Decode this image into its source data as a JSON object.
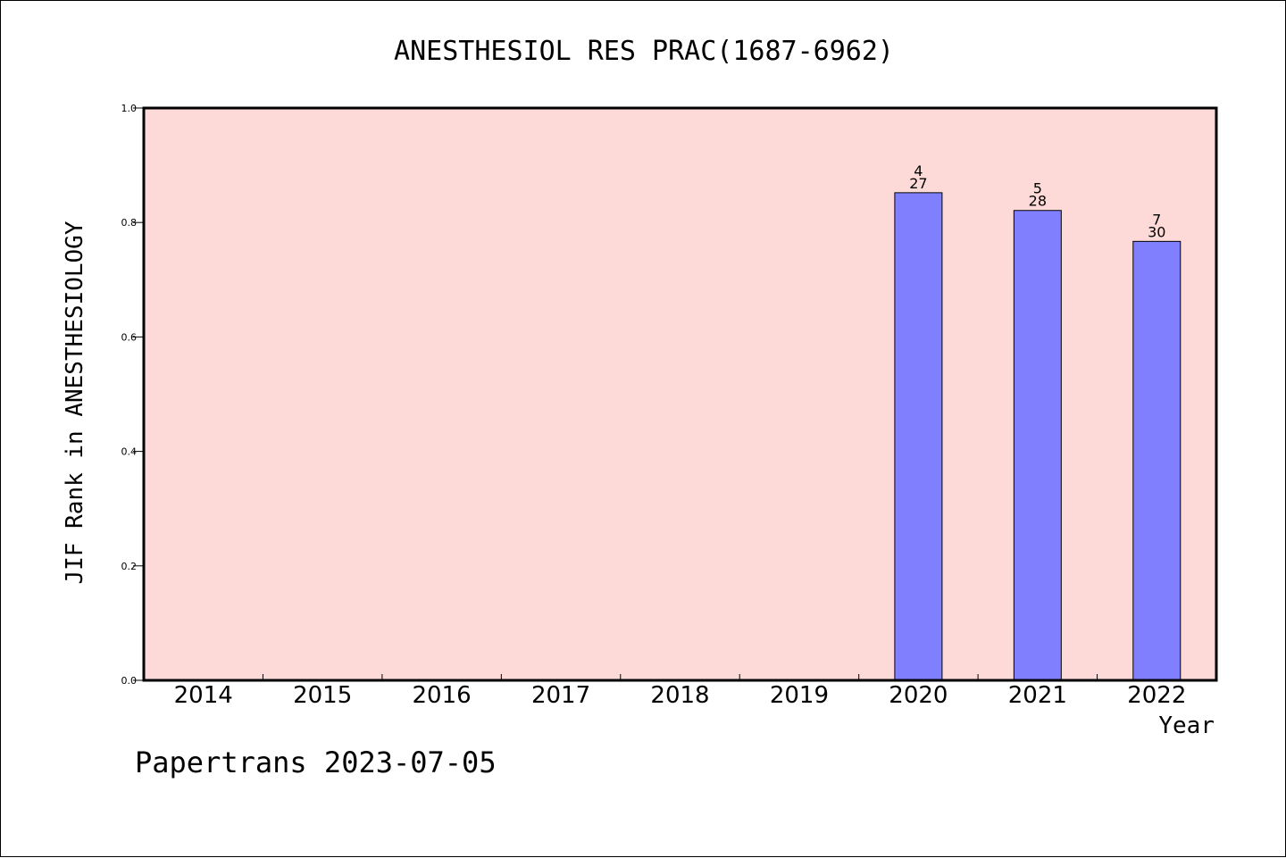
{
  "chart_data": {
    "type": "bar",
    "title": "ANESTHESIOL RES PRAC(1687-6962)",
    "xlabel": "Year",
    "ylabel": "JIF Rank in ANESTHESIOLOGY",
    "categories": [
      "2014",
      "2015",
      "2016",
      "2017",
      "2018",
      "2019",
      "2020",
      "2021",
      "2022"
    ],
    "series": [
      {
        "values": [
          null,
          null,
          null,
          null,
          null,
          null,
          0.852,
          0.821,
          0.767
        ],
        "rank_labels": [
          null,
          null,
          null,
          null,
          null,
          null,
          "4",
          "5",
          "7"
        ],
        "total_labels": [
          null,
          null,
          null,
          null,
          null,
          null,
          "27",
          "28",
          "30"
        ]
      }
    ],
    "ylim": [
      0,
      1.0
    ],
    "yticks": [
      "0.0",
      "0.2",
      "0.4",
      "0.6",
      "0.8",
      "1.0"
    ],
    "grid": false,
    "legend": "none",
    "colors": {
      "plot_background": "#FDDAD7",
      "bar_fill": "#8080FF",
      "bar_stroke": "#000000",
      "axis": "#000000"
    }
  },
  "footer": {
    "credit": "Papertrans 2023-07-05"
  }
}
